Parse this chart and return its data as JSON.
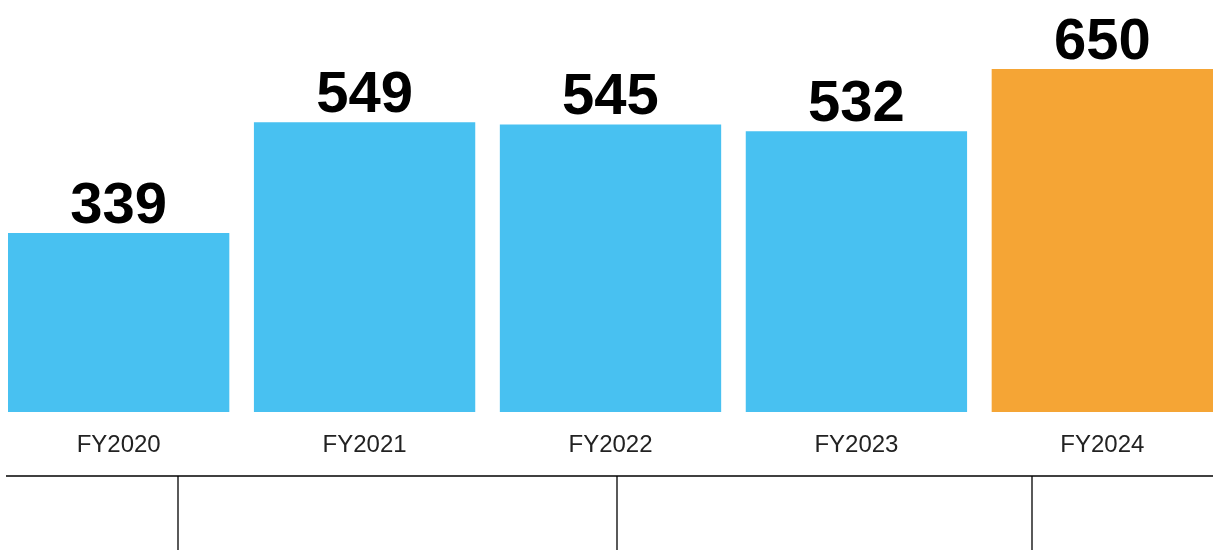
{
  "chart_data": {
    "type": "bar",
    "categories": [
      "FY2020",
      "FY2021",
      "FY2022",
      "FY2023",
      "FY2024"
    ],
    "values": [
      339,
      549,
      545,
      532,
      650
    ],
    "colors": [
      "#48c1f1",
      "#48c1f1",
      "#48c1f1",
      "#48c1f1",
      "#f5a535"
    ],
    "data_labels": true
  }
}
